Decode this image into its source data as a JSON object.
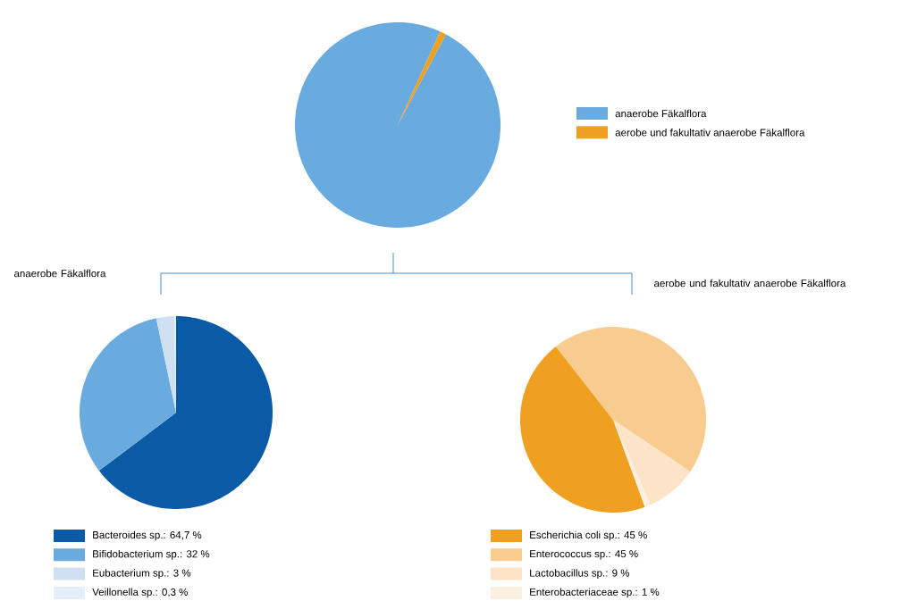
{
  "chart_data": [
    {
      "type": "pie",
      "categories": [
        "anaerobe Fäkalflora",
        "aerobe und fakultativ anaerobe Fäkalflora"
      ],
      "values": [
        99,
        1
      ],
      "colors": [
        "#6aabdf",
        "#f0a020"
      ],
      "legend": "right"
    },
    {
      "type": "pie",
      "title": "anaerobe Fäkalflora",
      "categories": [
        "Bacteroides sp.: 64,7 %",
        "Bifidobacterium sp.: 32 %",
        "Eubacterium sp.: 3 %",
        "Veillonella sp.: 0,3 %"
      ],
      "values": [
        64.7,
        32,
        3,
        0.3
      ],
      "colors": [
        "#0a5aa6",
        "#6aabdf",
        "#cfe0f2",
        "#e6eef9"
      ],
      "legend": "bottom"
    },
    {
      "type": "pie",
      "title": "aerobe und fakultativ anaerobe Fäkalflora",
      "categories": [
        "Escherichia coli sp.: 45 %",
        "Enterococcus sp.: 45 %",
        "Lactobacillus sp.: 9 %",
        "Enterobacteriaceae sp.: 1 %"
      ],
      "values": [
        45,
        45,
        9,
        1
      ],
      "colors": [
        "#f0a020",
        "#f8cc8e",
        "#fde4c8",
        "#fef0e0"
      ],
      "legend": "bottom"
    }
  ]
}
